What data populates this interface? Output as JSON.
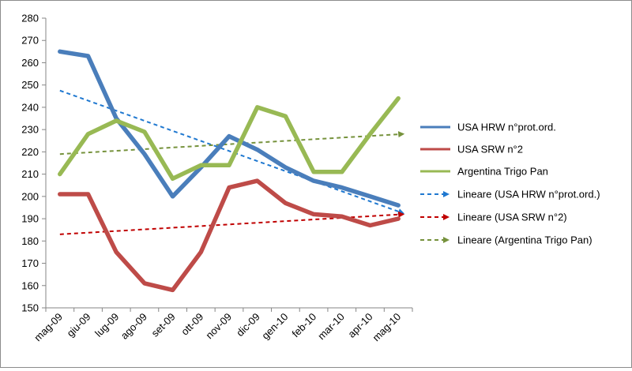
{
  "chart_data": {
    "type": "line",
    "title": "",
    "xlabel": "",
    "ylabel": "",
    "categories": [
      "mag-09",
      "giu-09",
      "lug-09",
      "ago-09",
      "set-09",
      "ott-09",
      "nov-09",
      "dic-09",
      "gen-10",
      "feb-10",
      "mar-10",
      "apr-10",
      "mag-10"
    ],
    "ylim": [
      150,
      280
    ],
    "yticks": [
      150,
      160,
      170,
      180,
      190,
      200,
      210,
      220,
      230,
      240,
      250,
      260,
      270,
      280
    ],
    "grid": false,
    "legend_position": "right",
    "series": [
      {
        "name": "USA HRW n°prot.ord.",
        "color": "#4a7ebb",
        "style": "solid",
        "values": [
          265,
          263,
          235,
          219,
          200,
          213,
          227,
          221,
          213,
          207,
          204,
          200,
          196
        ]
      },
      {
        "name": "USA SRW n°2",
        "color": "#be4b48",
        "style": "solid",
        "values": [
          201,
          201,
          175,
          161,
          158,
          175,
          204,
          207,
          197,
          192,
          191,
          187,
          190
        ]
      },
      {
        "name": "Argentina Trigo Pan",
        "color": "#98b954",
        "style": "solid",
        "values": [
          210,
          228,
          234,
          229,
          208,
          214,
          214,
          240,
          236,
          211,
          211,
          228,
          244
        ]
      }
    ],
    "trendlines": [
      {
        "name": "Lineare (USA HRW n°prot.ord.)",
        "color": "#1f78d0",
        "start": 247.5,
        "end": 192.5
      },
      {
        "name": "Lineare (USA SRW n°2)",
        "color": "#c00000",
        "start": 183,
        "end": 192
      },
      {
        "name": "Lineare (Argentina Trigo Pan)",
        "color": "#76923c",
        "start": 219,
        "end": 228
      }
    ]
  }
}
